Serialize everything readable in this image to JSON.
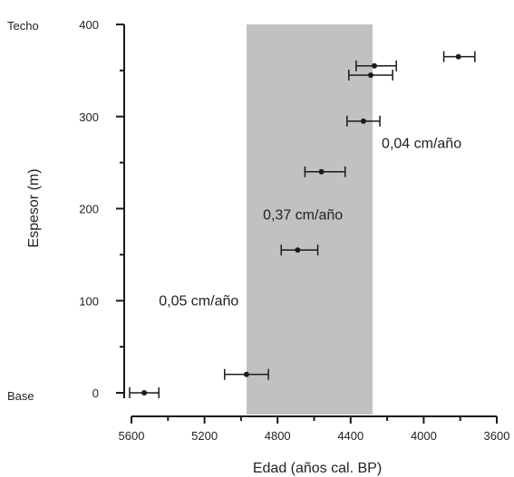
{
  "chart_data": {
    "type": "scatter",
    "xlabel": "Edad (años cal. BP)",
    "ylabel": "Espesor (m)",
    "xlim": [
      5600,
      3600
    ],
    "ylim": [
      0,
      400
    ],
    "x_reversed": true,
    "x_ticks": [
      5600,
      5200,
      4800,
      4400,
      4000,
      3600
    ],
    "x_tick_labels": [
      "5600",
      "5200",
      "4800",
      "4400",
      "4000",
      "3600"
    ],
    "y_ticks": [
      0,
      100,
      200,
      300,
      400
    ],
    "y_tick_labels": [
      "0",
      "100",
      "200",
      "300",
      "400"
    ],
    "side_labels": {
      "top": "Techo",
      "bottom": "Base"
    },
    "shaded_band": {
      "x_from": 4970,
      "x_to": 4280,
      "color": "#c0c1c3"
    },
    "points": [
      {
        "x": 5530,
        "y": 0,
        "x_min": 5610,
        "x_max": 5450
      },
      {
        "x": 4970,
        "y": 20,
        "x_min": 5090,
        "x_max": 4850
      },
      {
        "x": 4690,
        "y": 155,
        "x_min": 4780,
        "x_max": 4580
      },
      {
        "x": 4560,
        "y": 240,
        "x_min": 4650,
        "x_max": 4430
      },
      {
        "x": 4330,
        "y": 295,
        "x_min": 4420,
        "x_max": 4240
      },
      {
        "x": 4290,
        "y": 345,
        "x_min": 4410,
        "x_max": 4170
      },
      {
        "x": 4270,
        "y": 355,
        "x_min": 4370,
        "x_max": 4150
      },
      {
        "x": 3810,
        "y": 365,
        "x_min": 3890,
        "x_max": 3720
      }
    ],
    "annotations": [
      {
        "text": "0,05 cm/año",
        "x": 5450,
        "y": 95
      },
      {
        "text": "0,37 cm/año",
        "x": 4880,
        "y": 188
      },
      {
        "text": "0,04 cm/año",
        "x": 4230,
        "y": 266
      }
    ],
    "grid": false,
    "colors": {
      "points": "#1a1a1a",
      "axis": "#1a1a1a",
      "band": "#c0c1c3"
    }
  }
}
